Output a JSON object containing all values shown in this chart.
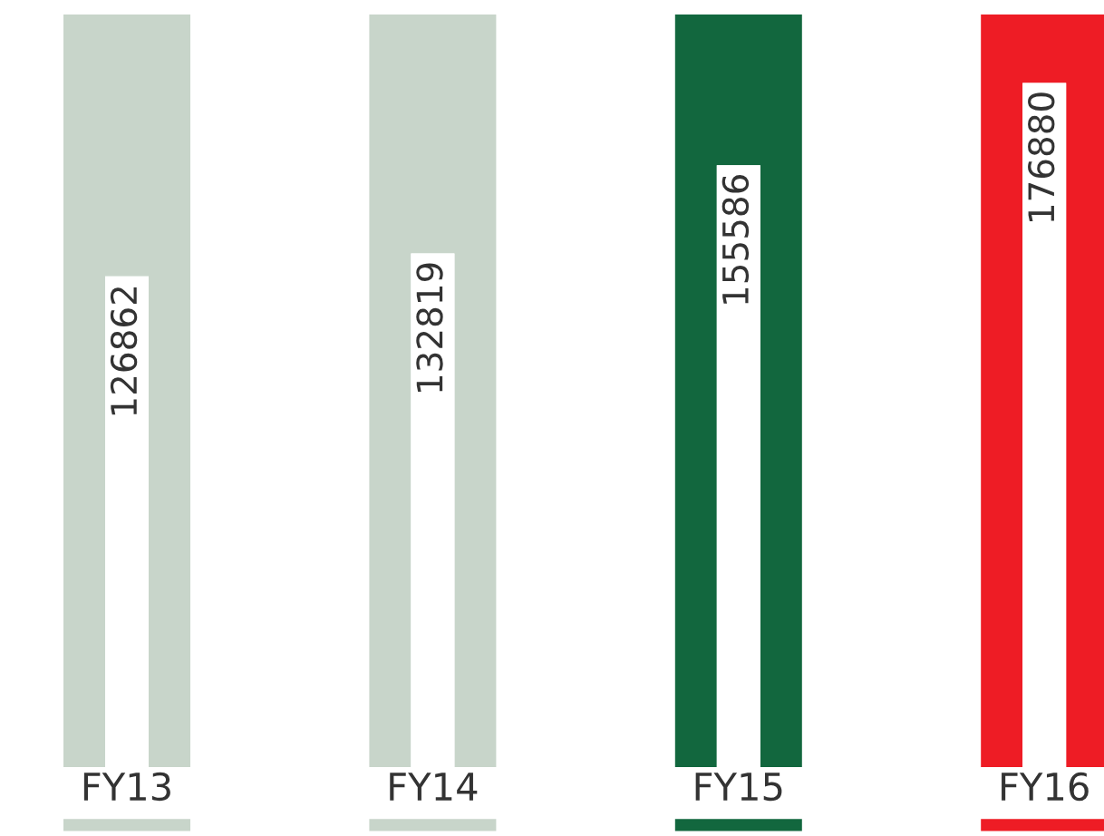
{
  "chart_data": {
    "type": "bar",
    "categories": [
      "FY13",
      "FY14",
      "FY15",
      "FY16"
    ],
    "values": [
      126862,
      132819,
      155586,
      176880
    ],
    "colors": [
      "#ffffff",
      "#ffffff",
      "#ffffff",
      "#ffffff"
    ],
    "data_labels": true
  }
}
